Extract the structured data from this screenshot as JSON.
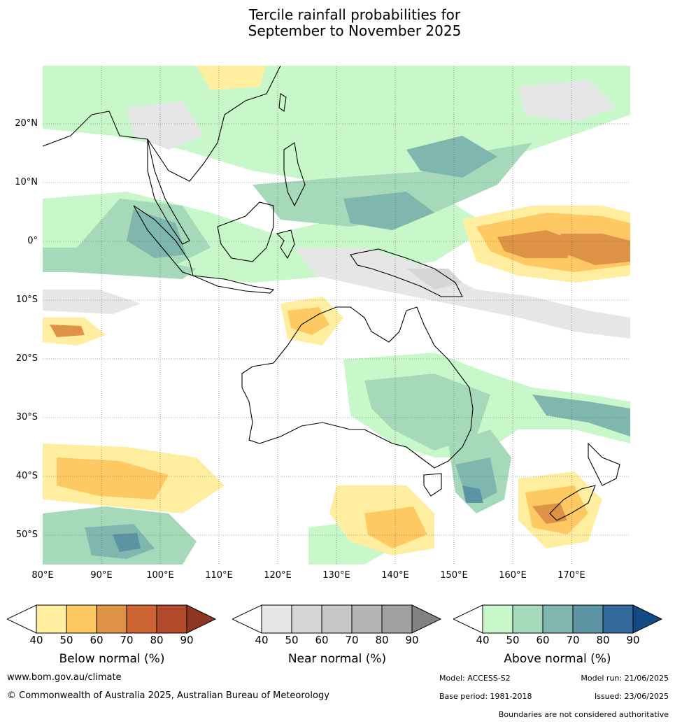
{
  "title_line1": "Tercile rainfall probabilities for",
  "title_line2": "September to November 2025",
  "lat_labels": [
    "20°N",
    "10°N",
    "0°",
    "10°S",
    "20°S",
    "30°S",
    "40°S",
    "50°S"
  ],
  "lon_labels": [
    "80°E",
    "90°E",
    "100°E",
    "110°E",
    "120°E",
    "130°E",
    "140°E",
    "150°E",
    "160°E",
    "170°E"
  ],
  "legend": {
    "below": {
      "title": "Below normal (%)",
      "ticks": [
        "40",
        "50",
        "60",
        "70",
        "80",
        "90"
      ],
      "colors": [
        "#ffeda0",
        "#fec962",
        "#dd9246",
        "#cb6332",
        "#b04a2b",
        "#8e3523"
      ]
    },
    "near": {
      "title": "Near normal (%)",
      "ticks": [
        "40",
        "50",
        "60",
        "70",
        "80",
        "90"
      ],
      "colors": [
        "#e6e6e6",
        "#d6d6d6",
        "#c6c6c6",
        "#b5b5b5",
        "#a1a1a1",
        "#828282"
      ]
    },
    "above": {
      "title": "Above normal (%)",
      "ticks": [
        "40",
        "50",
        "60",
        "70",
        "80",
        "90"
      ],
      "colors": [
        "#c8f8ca",
        "#a6d9b9",
        "#7fb6ae",
        "#5c94a3",
        "#326a9c",
        "#134a83"
      ]
    }
  },
  "footer": {
    "website": "www.bom.gov.au/climate",
    "copyright": "© Commonwealth of Australia 2025, Australian Bureau of Meteorology",
    "model": "Model: ACCESS-S2",
    "model_run": "Model run: 21/06/2025",
    "base_period": "Base period: 1981-2018",
    "issued": "Issued: 23/06/2025",
    "disclaimer": "Boundaries are not considered authoritative"
  }
}
